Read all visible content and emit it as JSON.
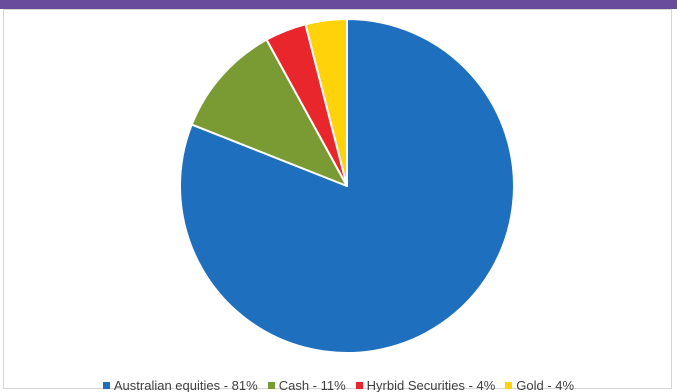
{
  "chart_data": {
    "type": "pie",
    "title": "",
    "slices": [
      {
        "label": "Australian equities - 81%",
        "value": 81,
        "color": "#1f6fbf"
      },
      {
        "label": "Cash - 11%",
        "value": 11,
        "color": "#7a9a34"
      },
      {
        "label": "Hyrbid Securities - 4%",
        "value": 4,
        "color": "#e8262b"
      },
      {
        "label": "Gold - 4%",
        "value": 4,
        "color": "#ffd20a"
      }
    ],
    "start_angle_deg": 0,
    "direction": "clockwise",
    "legend_position": "bottom"
  }
}
